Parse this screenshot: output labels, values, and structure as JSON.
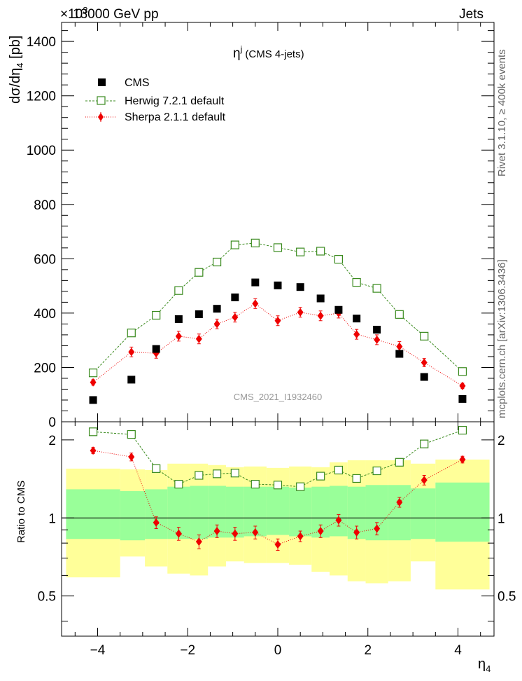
{
  "header": {
    "left": "13000 GeV pp",
    "right": "Jets",
    "exponent": "×10",
    "exponent_power": "3"
  },
  "side_labels": {
    "rivet": "Rivet 3.1.10, ≥ 400k events",
    "mcplots": "mcplots.cern.ch [arXiv:1306.3436]"
  },
  "colors": {
    "cms": "#000000",
    "herwig": "#3a8a1e",
    "sherpa": "#ee0000",
    "band_inner": "#99ff99",
    "band_outer": "#ffff99"
  },
  "chart_data": [
    {
      "type": "scatter",
      "panel": "main",
      "title_main": "η",
      "title_sup": "j",
      "title_rest": " (CMS 4-jets)",
      "watermark": "CMS_2021_I1932460",
      "ylabel": "dσ/dη",
      "ylabel_sub": "4",
      "ylabel_unit": " [pb]",
      "xlim": [
        -4.8,
        4.8
      ],
      "ylim": [
        0,
        1470
      ],
      "yticks": [
        0,
        200,
        400,
        600,
        800,
        1000,
        1200,
        1400
      ],
      "ytick_labels": [
        "0",
        "200",
        "400",
        "600",
        "800",
        "1000",
        "1200",
        "1400"
      ],
      "x": [
        -4.1,
        -3.25,
        -2.7,
        -2.2,
        -1.75,
        -1.35,
        -0.95,
        -0.5,
        0.0,
        0.5,
        0.95,
        1.35,
        1.75,
        2.2,
        2.7,
        3.25,
        4.1
      ],
      "series": [
        {
          "name": "CMS",
          "style": "filled-square",
          "values": [
            80,
            155,
            268,
            378,
            396,
            416,
            458,
            513,
            502,
            496,
            454,
            412,
            380,
            339,
            250,
            165,
            84
          ]
        },
        {
          "name": "Herwig 7.2.1 default",
          "style": "open-square-dashed",
          "values": [
            180,
            327,
            392,
            483,
            550,
            588,
            651,
            658,
            641,
            625,
            628,
            598,
            513,
            491,
            395,
            315,
            185
          ]
        },
        {
          "name": "Sherpa 2.1.1 default",
          "style": "diamond-dotted",
          "values": [
            145,
            257,
            252,
            315,
            305,
            360,
            385,
            435,
            372,
            403,
            390,
            400,
            322,
            302,
            277,
            218,
            132
          ],
          "errors": [
            10,
            18,
            18,
            18,
            18,
            18,
            18,
            18,
            18,
            18,
            18,
            18,
            18,
            18,
            18,
            15,
            10
          ]
        }
      ]
    },
    {
      "type": "scatter",
      "panel": "ratio",
      "ylabel": "Ratio to CMS",
      "xlabel": "η",
      "xlabel_sub": "4",
      "xlim": [
        -4.8,
        4.8
      ],
      "ylim": [
        0.35,
        2.35
      ],
      "yticks": [
        0.5,
        1,
        2
      ],
      "ytick_labels": [
        "0.5",
        "1",
        "2"
      ],
      "xticks": [
        -4,
        -2,
        0,
        2,
        4
      ],
      "xtick_labels": [
        "−4",
        "−2",
        "0",
        "2",
        "4"
      ],
      "bin_edges": [
        -4.7,
        -3.5,
        -2.95,
        -2.45,
        -1.95,
        -1.55,
        -1.15,
        -0.75,
        -0.25,
        0.25,
        0.75,
        1.15,
        1.55,
        1.95,
        2.45,
        2.95,
        3.5,
        4.7
      ],
      "band_inner": [
        [
          0.83,
          1.29
        ],
        [
          0.82,
          1.27
        ],
        [
          0.83,
          1.29
        ],
        [
          0.83,
          1.32
        ],
        [
          0.83,
          1.33
        ],
        [
          0.84,
          1.33
        ],
        [
          0.84,
          1.32
        ],
        [
          0.85,
          1.32
        ],
        [
          0.86,
          1.32
        ],
        [
          0.85,
          1.31
        ],
        [
          0.84,
          1.32
        ],
        [
          0.85,
          1.33
        ],
        [
          0.83,
          1.32
        ],
        [
          0.82,
          1.34
        ],
        [
          0.82,
          1.34
        ],
        [
          0.83,
          1.3
        ],
        [
          0.81,
          1.37
        ]
      ],
      "band_outer": [
        [
          0.59,
          1.55
        ],
        [
          0.71,
          1.54
        ],
        [
          0.65,
          1.53
        ],
        [
          0.61,
          1.62
        ],
        [
          0.6,
          1.62
        ],
        [
          0.65,
          1.6
        ],
        [
          0.68,
          1.57
        ],
        [
          0.67,
          1.58
        ],
        [
          0.67,
          1.56
        ],
        [
          0.66,
          1.58
        ],
        [
          0.62,
          1.57
        ],
        [
          0.6,
          1.64
        ],
        [
          0.57,
          1.67
        ],
        [
          0.56,
          1.67
        ],
        [
          0.57,
          1.67
        ],
        [
          0.68,
          1.62
        ],
        [
          0.53,
          1.68
        ]
      ],
      "x": [
        -4.1,
        -3.25,
        -2.7,
        -2.2,
        -1.75,
        -1.35,
        -0.95,
        -0.5,
        0.0,
        0.5,
        0.95,
        1.35,
        1.75,
        2.2,
        2.7,
        3.25,
        4.1
      ],
      "series": [
        {
          "name": "Herwig 7.2.1 default",
          "values": [
            2.15,
            2.1,
            1.55,
            1.35,
            1.46,
            1.48,
            1.49,
            1.35,
            1.34,
            1.32,
            1.45,
            1.53,
            1.42,
            1.52,
            1.64,
            1.93,
            2.18
          ]
        },
        {
          "name": "Sherpa 2.1.1 default",
          "values": [
            1.82,
            1.72,
            0.96,
            0.87,
            0.81,
            0.89,
            0.87,
            0.88,
            0.79,
            0.85,
            0.89,
            0.98,
            0.88,
            0.91,
            1.15,
            1.4,
            1.68
          ],
          "errors": [
            0.05,
            0.06,
            0.05,
            0.05,
            0.05,
            0.05,
            0.05,
            0.05,
            0.04,
            0.04,
            0.05,
            0.05,
            0.05,
            0.05,
            0.05,
            0.06,
            0.05
          ]
        }
      ]
    }
  ]
}
